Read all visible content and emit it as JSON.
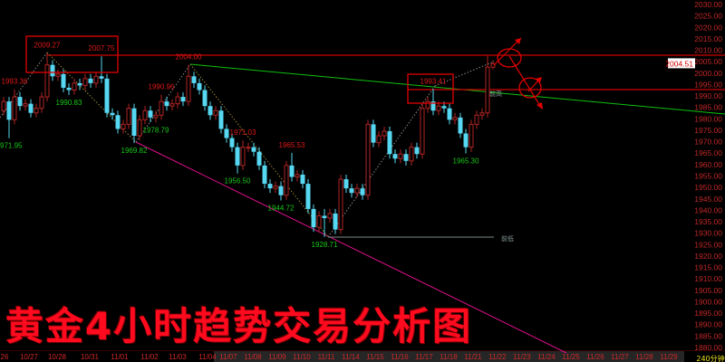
{
  "chart_data": {
    "type": "candlestick",
    "title": "黄金4小时趋势交易分析图",
    "period_label": "240分钟",
    "current_price": "2004.51",
    "ylim": [
      1880,
      2030
    ],
    "y_ticks": [
      "2030.00",
      "2025.00",
      "2020.00",
      "2015.00",
      "2010.00",
      "2005.00",
      "2000.00",
      "1995.00",
      "1990.00",
      "1985.00",
      "1980.00",
      "1975.00",
      "1970.00",
      "1965.00",
      "1960.00",
      "1955.00",
      "1950.00",
      "1945.00",
      "1940.00",
      "1935.00",
      "1930.00",
      "1925.00",
      "1920.00",
      "1915.00",
      "1910.00",
      "1905.00",
      "1900.00",
      "1895.00",
      "1890.00",
      "1885.00",
      "1880.00"
    ],
    "x_ticks": [
      "26",
      "10/27",
      "10/28",
      "10/31",
      "11/01",
      "11/02",
      "11/03",
      "11/04",
      "11/07",
      "11/08",
      "11/09",
      "11/10",
      "11/11",
      "11/14",
      "11/15",
      "11/16",
      "11/17",
      "11/18",
      "11/21",
      "11/22",
      "11/23",
      "11/24",
      "11/25",
      "11/26",
      "11/27",
      "11/28",
      "11/29"
    ],
    "candles_ohlc": [
      [
        1984,
        1990,
        1982,
        1988
      ],
      [
        1988,
        1990,
        1971.95,
        1980
      ],
      [
        1980,
        1993.36,
        1978,
        1990
      ],
      [
        1990,
        1992,
        1984,
        1986
      ],
      [
        1986,
        1989,
        1984,
        1987
      ],
      [
        1987,
        1989,
        1981,
        1983
      ],
      [
        1983,
        1987,
        1981,
        1985
      ],
      [
        1985,
        1992,
        1983,
        1990
      ],
      [
        1990,
        2009.27,
        1988,
        2004
      ],
      [
        2004,
        2006,
        1997,
        1999
      ],
      [
        1999,
        2002,
        1997,
        2000
      ],
      [
        2000,
        2002,
        1992,
        1994
      ],
      [
        1994,
        1996,
        1990.83,
        1993
      ],
      [
        1993,
        1998,
        1991,
        1996
      ],
      [
        1996,
        1998,
        1993,
        1995
      ],
      [
        1995,
        2000,
        1993,
        1998
      ],
      [
        1998,
        2000,
        1994,
        1996
      ],
      [
        1996,
        2001,
        1994,
        1999
      ],
      [
        1999,
        2007.75,
        1996,
        1998
      ],
      [
        1998,
        2000,
        1981,
        1983
      ],
      [
        1983,
        1985,
        1980,
        1982
      ],
      [
        1982,
        1984,
        1974,
        1976
      ],
      [
        1976,
        1980,
        1974,
        1978
      ],
      [
        1978,
        1987,
        1976,
        1985
      ],
      [
        1985,
        1987,
        1969.82,
        1973
      ],
      [
        1973,
        1982,
        1971,
        1980
      ],
      [
        1980,
        1986,
        1978,
        1984
      ],
      [
        1984,
        1986,
        1979,
        1981
      ],
      [
        1981,
        1984,
        1978.79,
        1982
      ],
      [
        1982,
        1990.96,
        1980,
        1988
      ],
      [
        1988,
        1990,
        1984,
        1986
      ],
      [
        1986,
        1989,
        1984,
        1987
      ],
      [
        1987,
        1992,
        1985,
        1990
      ],
      [
        1990,
        1992,
        1986,
        1988
      ],
      [
        1988,
        2004,
        1986,
        1999
      ],
      [
        1999,
        2001,
        1994,
        1996
      ],
      [
        1996,
        1998,
        1991,
        1993
      ],
      [
        1993,
        1995,
        1984,
        1986
      ],
      [
        1986,
        1988,
        1980,
        1982
      ],
      [
        1982,
        1986,
        1980,
        1984
      ],
      [
        1984,
        1986,
        1974,
        1976
      ],
      [
        1976,
        1978,
        1970,
        1972
      ],
      [
        1972,
        1974,
        1966,
        1968
      ],
      [
        1968,
        1970,
        1956.5,
        1960
      ],
      [
        1960,
        1971.03,
        1958,
        1968
      ],
      [
        1968,
        1970,
        1966,
        1968
      ],
      [
        1968,
        1970,
        1964,
        1966
      ],
      [
        1966,
        1968,
        1958,
        1960
      ],
      [
        1960,
        1962,
        1950,
        1952
      ],
      [
        1952,
        1954,
        1948,
        1950
      ],
      [
        1950,
        1953,
        1948,
        1951
      ],
      [
        1951,
        1953,
        1944.72,
        1947
      ],
      [
        1947,
        1962,
        1945,
        1960
      ],
      [
        1960,
        1965.53,
        1953,
        1955
      ],
      [
        1955,
        1958,
        1953,
        1956
      ],
      [
        1956,
        1958,
        1950,
        1952
      ],
      [
        1952,
        1954,
        1939,
        1941
      ],
      [
        1941,
        1943,
        1931,
        1933
      ],
      [
        1933,
        1940,
        1931,
        1938
      ],
      [
        1938,
        1941,
        1928.71,
        1937
      ],
      [
        1937,
        1941,
        1935,
        1939
      ],
      [
        1939,
        1941,
        1930,
        1932
      ],
      [
        1932,
        1956,
        1930,
        1954
      ],
      [
        1954,
        1956,
        1948,
        1950
      ],
      [
        1950,
        1952,
        1946,
        1948
      ],
      [
        1948,
        1952,
        1946,
        1950
      ],
      [
        1950,
        1952,
        1945,
        1947
      ],
      [
        1947,
        1980,
        1945,
        1978
      ],
      [
        1978,
        1980,
        1968,
        1970
      ],
      [
        1970,
        1975,
        1968,
        1973
      ],
      [
        1973,
        1977,
        1971,
        1975
      ],
      [
        1975,
        1977,
        1963,
        1965
      ],
      [
        1965,
        1967,
        1961,
        1963
      ],
      [
        1963,
        1967,
        1961,
        1965
      ],
      [
        1965,
        1967,
        1960,
        1962
      ],
      [
        1962,
        1970,
        1960,
        1968
      ],
      [
        1968,
        1970,
        1963,
        1965
      ],
      [
        1965,
        1987,
        1963,
        1985
      ],
      [
        1985,
        1990,
        1983,
        1988
      ],
      [
        1988,
        1993.41,
        1982,
        1984
      ],
      [
        1984,
        1988,
        1982,
        1986
      ],
      [
        1986,
        1988,
        1983,
        1985
      ],
      [
        1985,
        1987,
        1978,
        1980
      ],
      [
        1980,
        1983,
        1978,
        1981
      ],
      [
        1981,
        1983,
        1972,
        1974
      ],
      [
        1974,
        1976,
        1965.3,
        1968
      ],
      [
        1968,
        1980,
        1966,
        1978
      ],
      [
        1978,
        1984,
        1976,
        1982
      ],
      [
        1982,
        1985,
        1980,
        1983
      ],
      [
        1983,
        2008,
        1981,
        2003
      ],
      [
        2003,
        2006,
        2002,
        2004.51
      ]
    ],
    "swing_labels": [
      {
        "text": "1993.36",
        "type": "high",
        "candle": 2,
        "price": 1993.36
      },
      {
        "text": "1971.95",
        "type": "low",
        "candle": 1,
        "price": 1971.95
      },
      {
        "text": "2009.27",
        "type": "high",
        "candle": 8,
        "price": 2009.27
      },
      {
        "text": "1990.83",
        "type": "low",
        "candle": 12,
        "price": 1990.83
      },
      {
        "text": "2007.75",
        "type": "high",
        "candle": 18,
        "price": 2007.75
      },
      {
        "text": "1969.82",
        "type": "low",
        "candle": 24,
        "price": 1969.82
      },
      {
        "text": "1990.96",
        "type": "high",
        "candle": 29,
        "price": 1990.96
      },
      {
        "text": "1978.79",
        "type": "low",
        "candle": 28,
        "price": 1978.79
      },
      {
        "text": "2004.00",
        "type": "high",
        "candle": 34,
        "price": 2004.0
      },
      {
        "text": "1971.03",
        "type": "high",
        "candle": 44,
        "price": 1971.03
      },
      {
        "text": "1956.50",
        "type": "low",
        "candle": 43,
        "price": 1956.5
      },
      {
        "text": "1965.53",
        "type": "high",
        "candle": 53,
        "price": 1965.53
      },
      {
        "text": "1944.72",
        "type": "low",
        "candle": 51,
        "price": 1944.72
      },
      {
        "text": "1928.71",
        "type": "low",
        "candle": 59,
        "price": 1928.71
      },
      {
        "text": "1993.41",
        "type": "high",
        "candle": 79,
        "price": 1993.41
      },
      {
        "text": "1965.30",
        "type": "low",
        "candle": 85,
        "price": 1965.3
      }
    ],
    "annotations": {
      "prev_high_label": "前高",
      "prev_low_label": "前低"
    },
    "colors": {
      "up": "#b02424",
      "down": "#56d8f2",
      "high_label": "#e01818",
      "low_label": "#18c818",
      "axis": "#c02828",
      "trend_green": "#10c010",
      "trend_magenta": "#e0108c",
      "resistance": "#d00000"
    }
  }
}
